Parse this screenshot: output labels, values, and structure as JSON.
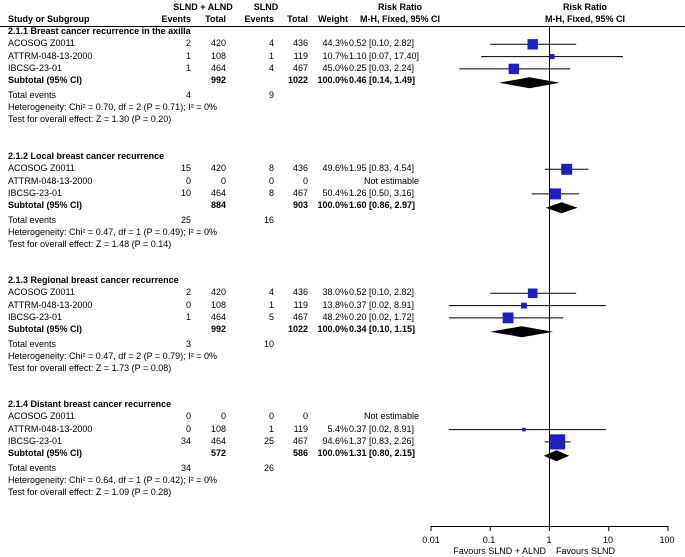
{
  "header": {
    "study": "Study or Subgroup",
    "group1": "SLND + ALND",
    "group2": "SLND",
    "events": "Events",
    "total": "Total",
    "weight": "Weight",
    "rr_title": "Risk Ratio",
    "rr_method": "M-H, Fixed, 95% CI"
  },
  "axis": {
    "ticks": [
      "0.01",
      "0.1",
      "1",
      "10",
      "100"
    ],
    "favours_left": "Favours SLND + ALND",
    "favours_right": "Favours SLND"
  },
  "chart_data": {
    "type": "forest",
    "scale": "log",
    "xlim": [
      0.01,
      100
    ],
    "reference_line": 1,
    "subgroups": [
      {
        "title": "2.1.1 Breast cancer recurrence in the axilla",
        "studies": [
          {
            "name": "ACOSOG Z0011",
            "e1": "2",
            "n1": "420",
            "e2": "4",
            "n2": "436",
            "weight": "44.3%",
            "ci_text": "0.52 [0.10, 2.82]",
            "rr": 0.52,
            "lo": 0.1,
            "hi": 2.82,
            "w": 44.3
          },
          {
            "name": "ATTRM-048-13-2000",
            "e1": "1",
            "n1": "108",
            "e2": "1",
            "n2": "119",
            "weight": "10.7%",
            "ci_text": "1.10 [0.07, 17.40]",
            "rr": 1.1,
            "lo": 0.07,
            "hi": 17.4,
            "w": 10.7
          },
          {
            "name": "IBCSG-23-01",
            "e1": "1",
            "n1": "464",
            "e2": "4",
            "n2": "467",
            "weight": "45.0%",
            "ci_text": "0.25 [0.03, 2.24]",
            "rr": 0.25,
            "lo": 0.03,
            "hi": 2.24,
            "w": 45.0
          }
        ],
        "subtotal": {
          "label": "Subtotal (95% CI)",
          "n1": "992",
          "n2": "1022",
          "weight": "100.0%",
          "ci_text": "0.46 [0.14, 1.49]",
          "rr": 0.46,
          "lo": 0.14,
          "hi": 1.49
        },
        "total_events": {
          "label": "Total events",
          "e1": "4",
          "e2": "9"
        },
        "heterogeneity": "Heterogeneity: Chi² = 0.70, df = 2 (P = 0.71); I² = 0%",
        "overall": "Test for overall effect: Z = 1.30 (P = 0.20)"
      },
      {
        "title": "2.1.2 Local breast cancer recurrence",
        "studies": [
          {
            "name": "ACOSOG Z0011",
            "e1": "15",
            "n1": "420",
            "e2": "8",
            "n2": "436",
            "weight": "49.6%",
            "ci_text": "1.95 [0.83, 4.54]",
            "rr": 1.95,
            "lo": 0.83,
            "hi": 4.54,
            "w": 49.6
          },
          {
            "name": "ATTRM-048-13-2000",
            "e1": "0",
            "n1": "0",
            "e2": "0",
            "n2": "0",
            "weight": "",
            "ci_text": "Not estimable",
            "rr": null,
            "lo": null,
            "hi": null,
            "w": 0
          },
          {
            "name": "IBCSG-23-01",
            "e1": "10",
            "n1": "464",
            "e2": "8",
            "n2": "467",
            "weight": "50.4%",
            "ci_text": "1.26 [0.50, 3.16]",
            "rr": 1.26,
            "lo": 0.5,
            "hi": 3.16,
            "w": 50.4
          }
        ],
        "subtotal": {
          "label": "Subtotal (95% CI)",
          "n1": "884",
          "n2": "903",
          "weight": "100.0%",
          "ci_text": "1.60 [0.86, 2.97]",
          "rr": 1.6,
          "lo": 0.86,
          "hi": 2.97
        },
        "total_events": {
          "label": "Total events",
          "e1": "25",
          "e2": "16"
        },
        "heterogeneity": "Heterogeneity: Chi² = 0.47, df = 1 (P = 0.49); I² = 0%",
        "overall": "Test for overall effect: Z = 1.48 (P = 0.14)"
      },
      {
        "title": "2.1.3 Regional breast cancer recurrence",
        "studies": [
          {
            "name": "ACOSOG Z0011",
            "e1": "2",
            "n1": "420",
            "e2": "4",
            "n2": "436",
            "weight": "38.0%",
            "ci_text": "0.52 [0.10, 2.82]",
            "rr": 0.52,
            "lo": 0.1,
            "hi": 2.82,
            "w": 38.0
          },
          {
            "name": "ATTRM-048-13-2000",
            "e1": "0",
            "n1": "108",
            "e2": "1",
            "n2": "119",
            "weight": "13.8%",
            "ci_text": "0.37 [0.02, 8.91]",
            "rr": 0.37,
            "lo": 0.02,
            "hi": 8.91,
            "w": 13.8
          },
          {
            "name": "IBCSG-23-01",
            "e1": "1",
            "n1": "464",
            "e2": "5",
            "n2": "467",
            "weight": "48.2%",
            "ci_text": "0.20 [0.02, 1.72]",
            "rr": 0.2,
            "lo": 0.02,
            "hi": 1.72,
            "w": 48.2
          }
        ],
        "subtotal": {
          "label": "Subtotal (95% CI)",
          "n1": "992",
          "n2": "1022",
          "weight": "100.0%",
          "ci_text": "0.34 [0.10, 1.15]",
          "rr": 0.34,
          "lo": 0.1,
          "hi": 1.15
        },
        "total_events": {
          "label": "Total events",
          "e1": "3",
          "e2": "10"
        },
        "heterogeneity": "Heterogeneity: Chi² = 0.47, df = 2 (P = 0.79); I² = 0%",
        "overall": "Test for overall effect: Z = 1.73 (P = 0.08)"
      },
      {
        "title": "2.1.4 Distant breast cancer recurrence",
        "studies": [
          {
            "name": "ACOSOG Z0011",
            "e1": "0",
            "n1": "0",
            "e2": "0",
            "n2": "0",
            "weight": "",
            "ci_text": "Not estimable",
            "rr": null,
            "lo": null,
            "hi": null,
            "w": 0
          },
          {
            "name": "ATTRM-048-13-2000",
            "e1": "0",
            "n1": "108",
            "e2": "1",
            "n2": "119",
            "weight": "5.4%",
            "ci_text": "0.37 [0.02, 8.91]",
            "rr": 0.37,
            "lo": 0.02,
            "hi": 8.91,
            "w": 5.4
          },
          {
            "name": "IBCSG-23-01",
            "e1": "34",
            "n1": "464",
            "e2": "25",
            "n2": "467",
            "weight": "94.6%",
            "ci_text": "1.37 [0.83, 2.26]",
            "rr": 1.37,
            "lo": 0.83,
            "hi": 2.26,
            "w": 94.6
          }
        ],
        "subtotal": {
          "label": "Subtotal (95% CI)",
          "n1": "572",
          "n2": "586",
          "weight": "100.0%",
          "ci_text": "1.31 [0.80, 2.15]",
          "rr": 1.31,
          "lo": 0.8,
          "hi": 2.15
        },
        "total_events": {
          "label": "Total events",
          "e1": "34",
          "e2": "26"
        },
        "heterogeneity": "Heterogeneity: Chi² = 0.64, df = 1 (P = 0.42); I² = 0%",
        "overall": "Test for overall effect: Z = 1.09 (P = 0.28)"
      }
    ]
  }
}
